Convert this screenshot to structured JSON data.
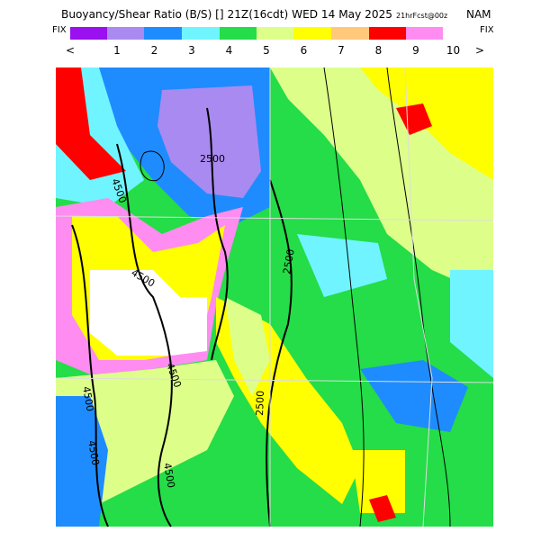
{
  "header": {
    "title": "Buoyancy/Shear Ratio (B/S) [] 21Z(16cdt) WED 14 May 2025",
    "forecast": "21hrFcst@00z",
    "model": "NAM"
  },
  "colorbar": {
    "left_label": "FIX",
    "right_label": "FIX",
    "low_arrow": "<",
    "high_arrow": ">",
    "labels": [
      "1",
      "2",
      "3",
      "4",
      "5",
      "6",
      "7",
      "8",
      "9",
      "10"
    ]
  },
  "map": {
    "contour_labels": [
      "2500",
      "4500",
      "4500",
      "2500",
      "4500",
      "2500",
      "4500",
      "4500",
      "4500"
    ]
  }
}
